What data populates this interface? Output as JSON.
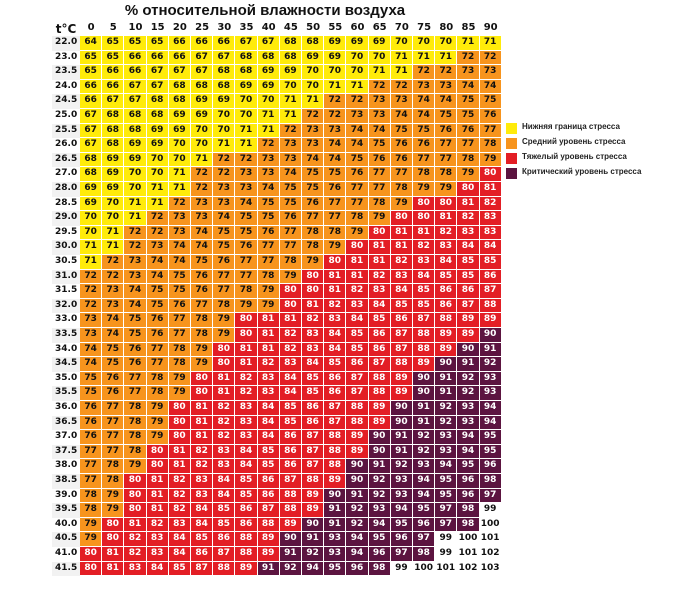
{
  "chart_data": {
    "type": "heatmap",
    "title": "% относительной влажности воздуха",
    "row_axis_label": "t°C",
    "columns": [
      0,
      5,
      10,
      15,
      20,
      25,
      30,
      35,
      40,
      45,
      50,
      55,
      60,
      65,
      70,
      75,
      80,
      85,
      90
    ],
    "rows": [
      {
        "t": "22.0",
        "values": [
          64,
          65,
          65,
          65,
          66,
          66,
          66,
          67,
          67,
          68,
          68,
          69,
          69,
          69,
          70,
          70,
          70,
          71,
          71
        ]
      },
      {
        "t": "23.0",
        "values": [
          65,
          65,
          66,
          66,
          66,
          67,
          67,
          68,
          68,
          68,
          69,
          69,
          70,
          70,
          71,
          71,
          71,
          72,
          72
        ]
      },
      {
        "t": "23.5",
        "values": [
          65,
          66,
          66,
          67,
          67,
          67,
          68,
          68,
          69,
          69,
          70,
          70,
          70,
          71,
          71,
          72,
          72,
          73,
          73
        ]
      },
      {
        "t": "24.0",
        "values": [
          66,
          66,
          67,
          67,
          68,
          68,
          68,
          69,
          69,
          70,
          70,
          71,
          71,
          72,
          72,
          73,
          73,
          74,
          74
        ]
      },
      {
        "t": "24.5",
        "values": [
          66,
          67,
          67,
          68,
          68,
          69,
          69,
          70,
          70,
          71,
          71,
          72,
          72,
          73,
          73,
          74,
          74,
          75,
          75
        ]
      },
      {
        "t": "25.0",
        "values": [
          67,
          68,
          68,
          68,
          69,
          69,
          70,
          70,
          71,
          71,
          72,
          72,
          73,
          73,
          74,
          74,
          75,
          75,
          76
        ]
      },
      {
        "t": "25.5",
        "values": [
          67,
          68,
          68,
          69,
          69,
          70,
          70,
          71,
          71,
          72,
          73,
          73,
          74,
          74,
          75,
          75,
          76,
          76,
          77
        ]
      },
      {
        "t": "26.0",
        "values": [
          67,
          68,
          69,
          69,
          70,
          70,
          71,
          71,
          72,
          73,
          73,
          74,
          74,
          75,
          76,
          76,
          77,
          77,
          78
        ]
      },
      {
        "t": "26.5",
        "values": [
          68,
          69,
          69,
          70,
          70,
          71,
          72,
          72,
          73,
          73,
          74,
          74,
          75,
          76,
          76,
          77,
          77,
          78,
          79
        ]
      },
      {
        "t": "27.0",
        "values": [
          68,
          69,
          70,
          70,
          71,
          72,
          72,
          73,
          73,
          74,
          75,
          75,
          76,
          77,
          77,
          78,
          78,
          79,
          80
        ]
      },
      {
        "t": "28.0",
        "values": [
          69,
          69,
          70,
          71,
          71,
          72,
          73,
          73,
          74,
          75,
          75,
          76,
          77,
          77,
          78,
          79,
          79,
          80,
          81
        ]
      },
      {
        "t": "28.5",
        "values": [
          69,
          70,
          71,
          71,
          72,
          73,
          73,
          74,
          75,
          75,
          76,
          77,
          77,
          78,
          79,
          80,
          80,
          81,
          82
        ]
      },
      {
        "t": "29.0",
        "values": [
          70,
          70,
          71,
          72,
          73,
          73,
          74,
          75,
          75,
          76,
          77,
          77,
          78,
          79,
          80,
          80,
          81,
          82,
          83
        ]
      },
      {
        "t": "29.5",
        "values": [
          70,
          71,
          72,
          72,
          73,
          74,
          75,
          75,
          76,
          77,
          78,
          78,
          79,
          80,
          81,
          81,
          82,
          83,
          83
        ]
      },
      {
        "t": "30.0",
        "values": [
          71,
          71,
          72,
          73,
          74,
          74,
          75,
          76,
          77,
          77,
          78,
          79,
          80,
          81,
          81,
          82,
          83,
          84,
          84
        ]
      },
      {
        "t": "30.5",
        "values": [
          71,
          72,
          73,
          74,
          74,
          75,
          76,
          77,
          77,
          78,
          79,
          80,
          81,
          81,
          82,
          83,
          84,
          85,
          85
        ]
      },
      {
        "t": "31.0",
        "values": [
          72,
          72,
          73,
          74,
          75,
          76,
          77,
          77,
          78,
          79,
          80,
          81,
          81,
          82,
          83,
          84,
          85,
          85,
          86
        ]
      },
      {
        "t": "31.5",
        "values": [
          72,
          73,
          74,
          75,
          75,
          76,
          77,
          78,
          79,
          80,
          80,
          81,
          82,
          83,
          84,
          85,
          86,
          86,
          87
        ]
      },
      {
        "t": "32.0",
        "values": [
          72,
          73,
          74,
          75,
          76,
          77,
          78,
          79,
          79,
          80,
          81,
          82,
          83,
          84,
          85,
          85,
          86,
          87,
          88
        ]
      },
      {
        "t": "33.0",
        "values": [
          73,
          74,
          75,
          76,
          77,
          78,
          79,
          80,
          81,
          81,
          82,
          83,
          84,
          85,
          86,
          87,
          88,
          89,
          89
        ]
      },
      {
        "t": "33.5",
        "values": [
          73,
          74,
          75,
          76,
          77,
          78,
          79,
          80,
          81,
          82,
          83,
          84,
          85,
          86,
          87,
          88,
          89,
          89,
          90
        ]
      },
      {
        "t": "34.0",
        "values": [
          74,
          75,
          76,
          77,
          78,
          79,
          80,
          81,
          81,
          82,
          83,
          84,
          85,
          86,
          87,
          88,
          89,
          90,
          91
        ]
      },
      {
        "t": "34.5",
        "values": [
          74,
          75,
          76,
          77,
          78,
          79,
          80,
          81,
          82,
          83,
          84,
          85,
          86,
          87,
          88,
          89,
          90,
          91,
          92
        ]
      },
      {
        "t": "35.0",
        "values": [
          75,
          76,
          77,
          78,
          79,
          80,
          81,
          82,
          83,
          84,
          85,
          86,
          87,
          88,
          89,
          90,
          91,
          92,
          93
        ]
      },
      {
        "t": "35.5",
        "values": [
          75,
          76,
          77,
          78,
          79,
          80,
          81,
          82,
          83,
          84,
          85,
          86,
          87,
          88,
          89,
          90,
          91,
          92,
          93
        ]
      },
      {
        "t": "36.0",
        "values": [
          76,
          77,
          78,
          79,
          80,
          81,
          82,
          83,
          84,
          85,
          86,
          87,
          88,
          89,
          90,
          91,
          92,
          93,
          94
        ]
      },
      {
        "t": "36.5",
        "values": [
          76,
          77,
          78,
          79,
          80,
          81,
          82,
          83,
          84,
          85,
          86,
          87,
          88,
          89,
          90,
          91,
          92,
          93,
          94
        ]
      },
      {
        "t": "37.0",
        "values": [
          76,
          77,
          78,
          79,
          80,
          81,
          82,
          83,
          84,
          86,
          87,
          88,
          89,
          90,
          91,
          92,
          93,
          94,
          95
        ]
      },
      {
        "t": "37.5",
        "values": [
          77,
          77,
          78,
          80,
          81,
          82,
          83,
          84,
          85,
          86,
          87,
          88,
          89,
          90,
          91,
          92,
          93,
          94,
          95
        ]
      },
      {
        "t": "38.0",
        "values": [
          77,
          78,
          79,
          80,
          81,
          82,
          83,
          84,
          85,
          86,
          87,
          88,
          90,
          91,
          92,
          93,
          94,
          95,
          96
        ]
      },
      {
        "t": "38.5",
        "values": [
          77,
          78,
          80,
          81,
          82,
          83,
          84,
          85,
          86,
          87,
          88,
          89,
          90,
          92,
          93,
          94,
          95,
          96,
          98
        ]
      },
      {
        "t": "39.0",
        "values": [
          78,
          79,
          80,
          81,
          82,
          83,
          84,
          85,
          86,
          88,
          89,
          90,
          91,
          92,
          93,
          94,
          95,
          96,
          97
        ]
      },
      {
        "t": "39.5",
        "values": [
          78,
          79,
          80,
          81,
          82,
          84,
          85,
          86,
          87,
          88,
          89,
          91,
          92,
          93,
          94,
          95,
          97,
          98,
          99
        ]
      },
      {
        "t": "40.0",
        "values": [
          79,
          80,
          81,
          82,
          83,
          84,
          85,
          86,
          88,
          89,
          90,
          91,
          92,
          94,
          95,
          96,
          97,
          98,
          100
        ]
      },
      {
        "t": "40.5",
        "values": [
          79,
          80,
          82,
          83,
          84,
          85,
          86,
          88,
          89,
          90,
          91,
          93,
          94,
          95,
          96,
          97,
          99,
          100,
          101
        ]
      },
      {
        "t": "41.0",
        "values": [
          80,
          81,
          82,
          83,
          84,
          86,
          87,
          88,
          89,
          91,
          92,
          93,
          94,
          96,
          97,
          98,
          99,
          101,
          102
        ]
      },
      {
        "t": "41.5",
        "values": [
          80,
          81,
          83,
          84,
          85,
          87,
          88,
          89,
          91,
          92,
          94,
          95,
          96,
          98,
          99,
          100,
          101,
          102,
          103
        ]
      }
    ],
    "thresholds": {
      "low_max": 71,
      "medium_max": 79,
      "heavy_max": 89,
      "critical_max": 98
    },
    "legend_position": "right",
    "legend": [
      {
        "label": "Нижняя граница стресса",
        "color": "#ffeb0a"
      },
      {
        "label": "Средний уровень стресса",
        "color": "#f7941d"
      },
      {
        "label": "Тяжелый уровень стресса",
        "color": "#e31e25"
      },
      {
        "label": "Критический уровень стресса",
        "color": "#5c1440"
      }
    ]
  }
}
